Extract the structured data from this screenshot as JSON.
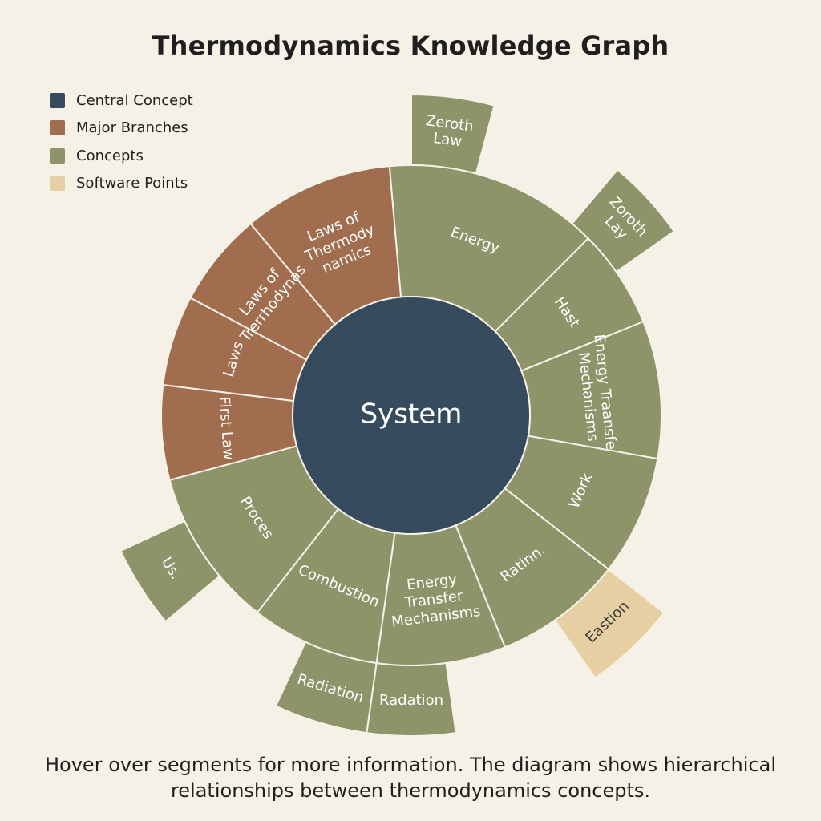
{
  "title": "Thermodynamics Knowledge Graph",
  "legend": [
    {
      "label": "Central Concept",
      "color": "#364b5d"
    },
    {
      "label": "Major Branches",
      "color": "#a06e4e"
    },
    {
      "label": "Concepts",
      "color": "#8e946a"
    },
    {
      "label": "Software Points",
      "color": "#e6cfa3"
    }
  ],
  "center": {
    "label": "System",
    "color": "#364b5d"
  },
  "ring": [
    {
      "label": "Laws of\nThermody\nnamics",
      "category": "Major Branches",
      "start": -40,
      "end": -5
    },
    {
      "label": "Energy",
      "category": "Concepts",
      "start": -5,
      "end": 45
    },
    {
      "label": "Hast",
      "category": "Concepts",
      "start": 45,
      "end": 68
    },
    {
      "label": "Energy Traansfer\nMechanisms",
      "category": "Concepts",
      "start": 68,
      "end": 100
    },
    {
      "label": "Work",
      "category": "Concepts",
      "start": 100,
      "end": 128
    },
    {
      "label": "Ratinn.",
      "category": "Concepts",
      "start": 128,
      "end": 158
    },
    {
      "label": "Energy\nTransfer\nMechanisms",
      "category": "Concepts",
      "start": 158,
      "end": 188
    },
    {
      "label": "Combustion",
      "category": "Concepts",
      "start": 188,
      "end": 218
    },
    {
      "label": "Proces",
      "category": "Concepts",
      "start": 218,
      "end": 255
    },
    {
      "label": "First Law",
      "category": "Major Branches",
      "start": 255,
      "end": 277
    },
    {
      "label": "Laws",
      "category": "Major Branches",
      "start": 277,
      "end": 298
    },
    {
      "label": "Laws of\nTrerrhodynas",
      "category": "Major Branches",
      "start": 298,
      "end": 320
    }
  ],
  "outer": [
    {
      "label": "Zeroth\nLaw",
      "category": "Concepts",
      "start": 0,
      "end": 15
    },
    {
      "label": "Zoroth\nLay",
      "category": "Concepts",
      "start": 40,
      "end": 55
    },
    {
      "label": "Eastion",
      "category": "Software Points",
      "start": 128,
      "end": 145
    },
    {
      "label": "Radation",
      "category": "Concepts",
      "start": 172,
      "end": 188
    },
    {
      "label": "Radiation",
      "category": "Concepts",
      "start": 188,
      "end": 205
    },
    {
      "label": "Us.",
      "category": "Concepts",
      "start": 230,
      "end": 245
    }
  ],
  "footer": "Hover over segments for more information. The diagram shows hierarchical relationships between thermodynamics concepts."
}
